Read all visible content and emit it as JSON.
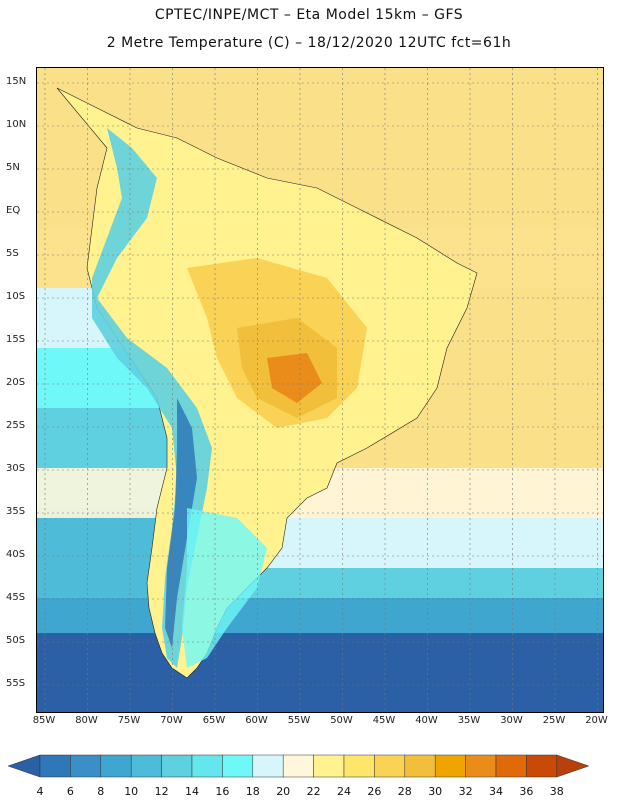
{
  "header": {
    "line1": "CPTEC/INPE/MCT –  Eta Model 15km – GFS",
    "line2": "2 Metre Temperature (C) – 18/12/2020 12UTC fct=61h"
  },
  "map": {
    "lat_labels": [
      "15N",
      "10N",
      "5N",
      "EQ",
      "5S",
      "10S",
      "15S",
      "20S",
      "25S",
      "30S",
      "35S",
      "40S",
      "45S",
      "50S",
      "55S"
    ],
    "lon_labels": [
      "85W",
      "80W",
      "75W",
      "70W",
      "65W",
      "60W",
      "55W",
      "50W",
      "45W",
      "40W",
      "35W",
      "30W",
      "25W",
      "20W"
    ]
  },
  "colorbar": {
    "labels": [
      "4",
      "6",
      "8",
      "10",
      "12",
      "14",
      "16",
      "18",
      "20",
      "22",
      "24",
      "26",
      "28",
      "30",
      "32",
      "34",
      "36",
      "38"
    ],
    "colors": [
      "#2b5fa6",
      "#2e78b9",
      "#3a8fc6",
      "#3fa6cf",
      "#4ebcd8",
      "#5fd0e0",
      "#63e6ec",
      "#6ff8f8",
      "#d6f6fb",
      "#fff7dc",
      "#fff28f",
      "#fde66b",
      "#f9d256",
      "#f1bf3a",
      "#f0a400",
      "#ea8c1a",
      "#e06a0a",
      "#c94a06",
      "#b8400a"
    ]
  }
}
